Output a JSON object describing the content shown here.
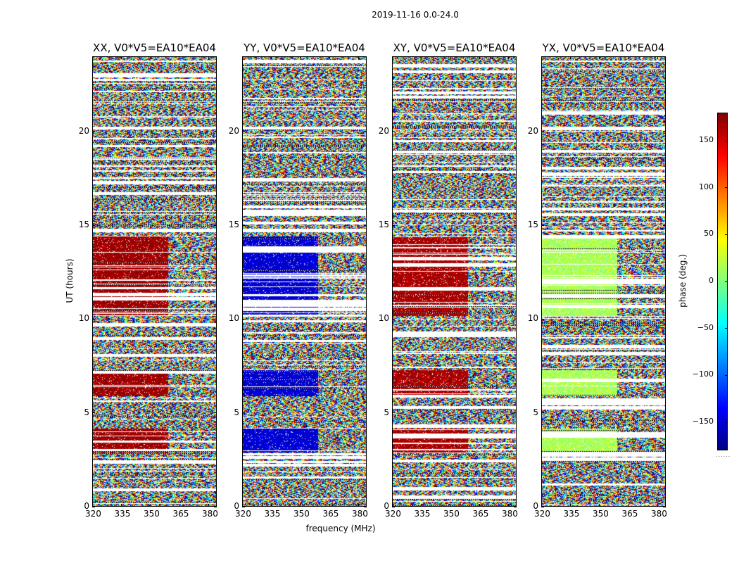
{
  "chart_data": {
    "type": "heatmap",
    "suptitle": "2019-11-16 0.0-24.0",
    "xlabel": "frequency (MHz)",
    "ylabel": "UT (hours)",
    "x_ticks": [
      "320",
      "335",
      "350",
      "365",
      "380"
    ],
    "x_tick_values": [
      320,
      335,
      350,
      365,
      380
    ],
    "xlim": [
      320,
      384
    ],
    "y_ticks": [
      "0",
      "5",
      "10",
      "15",
      "20"
    ],
    "y_tick_values": [
      0,
      5,
      10,
      15,
      20
    ],
    "ylim": [
      0,
      24
    ],
    "colormap": "jet",
    "colorbar": {
      "label": "phase (deg.)",
      "range": [
        -180,
        180
      ],
      "ticks": [
        "150",
        "100",
        "50",
        "0",
        "−50",
        "−100",
        "−150"
      ],
      "tick_values": [
        150,
        100,
        50,
        0,
        -50,
        -100,
        -150
      ],
      "footer": "......"
    },
    "panels": [
      {
        "title": "XX, V0*V5=EA10*EA04",
        "strong_phase_deg": 170
      },
      {
        "title": "YY, V0*V5=EA10*EA04",
        "strong_phase_deg": -150
      },
      {
        "title": "XY, V0*V5=EA10*EA04",
        "strong_phase_deg": 165
      },
      {
        "title": "YX, V0*V5=EA10*EA04",
        "strong_phase_deg": 15
      }
    ],
    "strong_signal_ut_ranges": [
      [
        10.2,
        14.4
      ],
      [
        2.9,
        4.2
      ],
      [
        5.9,
        7.3
      ]
    ],
    "band_edge_mhz": 359
  }
}
